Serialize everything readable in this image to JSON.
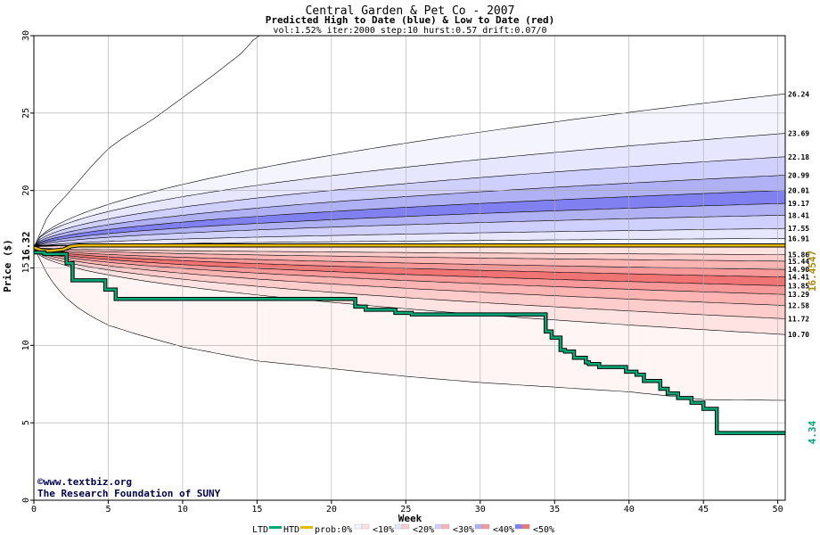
{
  "chart_data": {
    "type": "area",
    "title": "Central Garden & Pet Co - 2007",
    "subtitle": "Predicted High to Date (blue) &  Low to Date (red)",
    "params": "vol:1.52% iter:2000 step:10 hurst:0.57 drift:0.07/0",
    "xlabel": "Week",
    "ylabel": "Price ($)",
    "xlim": [
      0,
      50.5
    ],
    "ylim": [
      0,
      30
    ],
    "x_ticks": [
      0,
      5,
      10,
      15,
      20,
      25,
      30,
      35,
      40,
      45,
      50
    ],
    "y_ticks": [
      0,
      5,
      10,
      15,
      20,
      25,
      30
    ],
    "grid": true,
    "start_price": 16.32,
    "start_price_label": "16.32",
    "right_value_label": "16.4547",
    "ltd_end_label": "4.34",
    "right_labels": [
      "26.24",
      "23.69",
      "22.18",
      "20.99",
      "20.01",
      "19.17",
      "18.41",
      "17.55",
      "16.91",
      "15.86",
      "15.44",
      "14.90",
      "14.41",
      "13.85",
      "13.29",
      "12.58",
      "11.72",
      "10.70"
    ],
    "high_bands": [
      {
        "level": "0%",
        "end": 30.0,
        "k": 0.75
      },
      {
        "level": "10%",
        "end": 26.24,
        "k": 0.55
      },
      {
        "level": "20%",
        "end": 23.69,
        "k": 0.5
      },
      {
        "level": "30%",
        "end": 22.18,
        "k": 0.5
      },
      {
        "level": "40%",
        "end": 20.99,
        "k": 0.5
      },
      {
        "level": "50%",
        "end": 20.01,
        "k": 0.5
      },
      {
        "level": "40%",
        "end": 19.17,
        "k": 0.5
      },
      {
        "level": "30%",
        "end": 18.41,
        "k": 0.5
      },
      {
        "level": "20%",
        "end": 17.55,
        "k": 0.5
      },
      {
        "level": "10%",
        "end": 16.91,
        "k": 0.5
      }
    ],
    "low_bands": [
      {
        "level": "10%",
        "end": 15.86,
        "k": 0.5
      },
      {
        "level": "20%",
        "end": 15.44,
        "k": 0.5
      },
      {
        "level": "30%",
        "end": 14.9,
        "k": 0.5
      },
      {
        "level": "40%",
        "end": 14.41,
        "k": 0.5
      },
      {
        "level": "50%",
        "end": 13.85,
        "k": 0.5
      },
      {
        "level": "40%",
        "end": 13.29,
        "k": 0.5
      },
      {
        "level": "30%",
        "end": 12.58,
        "k": 0.5
      },
      {
        "level": "20%",
        "end": 11.72,
        "k": 0.5
      },
      {
        "level": "10%",
        "end": 10.7,
        "k": 0.5
      },
      {
        "level": "0%",
        "end": 6.5,
        "k": 0.55
      }
    ],
    "outer_high": {
      "x": [
        0,
        1,
        2,
        3,
        4,
        5,
        6,
        8,
        10,
        12,
        14,
        15
      ],
      "y": [
        16.32,
        18.5,
        19.5,
        20.6,
        21.7,
        22.7,
        23.4,
        24.6,
        26.0,
        27.4,
        28.9,
        30.0
      ]
    },
    "outer_low": {
      "x": [
        0,
        1,
        2,
        3,
        4,
        5,
        7,
        10,
        15,
        20,
        25,
        30,
        35,
        40,
        45,
        50.5
      ],
      "y": [
        16.32,
        14.4,
        13.2,
        12.4,
        11.8,
        11.3,
        10.7,
        9.9,
        9.0,
        8.5,
        8.0,
        7.6,
        7.3,
        7.0,
        6.5,
        6.45
      ]
    },
    "mid_line": 16.45,
    "band_colors": {
      "0%": "#ffffff",
      "10%": "#f4f4ff",
      "20%": "#e6e6ff",
      "30%": "#d0d0ff",
      "40%": "#b0b0f4",
      "50%": "#8080f0"
    },
    "low_band_colors": {
      "0%": "#fff5f5",
      "10%": "#ffe2e2",
      "20%": "#ffcccc",
      "30%": "#ffb4b4",
      "40%": "#f89898",
      "50%": "#f07474"
    },
    "htd": {
      "color": "#e6b800",
      "x": [
        0,
        0.5,
        1,
        2,
        2.5,
        3,
        50.5
      ],
      "y": [
        16.32,
        16.15,
        16.1,
        16.2,
        16.4,
        16.45,
        16.45
      ]
    },
    "ltd": {
      "color": "#00aa77",
      "x": [
        0,
        0.7,
        0.7,
        2.2,
        2.2,
        2.6,
        2.6,
        4.8,
        4.8,
        5.5,
        5.5,
        21.6,
        21.6,
        22.3,
        22.3,
        24.3,
        24.3,
        25.4,
        25.4,
        28.3,
        28.3,
        34.4,
        34.4,
        34.8,
        34.8,
        35.4,
        35.4,
        35.7,
        35.7,
        36.3,
        36.3,
        37.1,
        37.1,
        37.3,
        37.3,
        38.0,
        38.0,
        39.8,
        39.8,
        40.5,
        40.5,
        41.0,
        41.0,
        42.1,
        42.1,
        42.6,
        42.6,
        43.3,
        43.3,
        44.2,
        44.2,
        45.0,
        45.0,
        45.9,
        45.9,
        50.5
      ],
      "y": [
        16.0,
        16.0,
        15.9,
        15.9,
        15.3,
        15.3,
        14.2,
        14.2,
        13.6,
        13.6,
        13.0,
        13.0,
        12.5,
        12.5,
        12.3,
        12.3,
        12.1,
        12.1,
        12.0,
        12.0,
        12.0,
        12.0,
        10.9,
        10.9,
        10.5,
        10.5,
        9.7,
        9.7,
        9.6,
        9.6,
        9.2,
        9.2,
        8.9,
        8.9,
        8.8,
        8.8,
        8.6,
        8.6,
        8.3,
        8.3,
        8.1,
        8.1,
        7.7,
        7.7,
        7.2,
        7.2,
        6.9,
        6.9,
        6.6,
        6.6,
        6.3,
        6.3,
        5.9,
        5.9,
        4.34,
        4.34
      ]
    },
    "credit_lines": [
      "©www.textbiz.org",
      "The Research Foundation of SUNY"
    ],
    "legend": {
      "ltd": "LTD",
      "htd": "HTD",
      "prob": "prob:0%",
      "bins": [
        "<10%",
        "<20%",
        "<30%",
        "<40%",
        "<50%"
      ],
      "bin_colors": [
        "#f4f4ff",
        "#e6e6ff",
        "#d0d0ff",
        "#b0b0f4",
        "#8080f0"
      ],
      "bin_colors_low": [
        "#ffe2e2",
        "#ffcccc",
        "#ffb4b4",
        "#f89898",
        "#f07474"
      ]
    }
  }
}
